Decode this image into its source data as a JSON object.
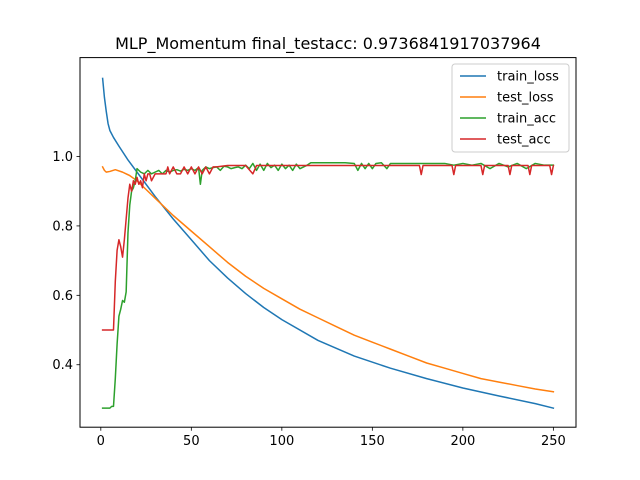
{
  "chart_data": {
    "type": "line",
    "title": "MLP_Momentum  final_testacc: 0.9736841917037964",
    "xlabel": "",
    "ylabel": "",
    "xlim": [
      -11.5,
      262.5
    ],
    "ylim": [
      0.22,
      1.285
    ],
    "xticks": [
      0,
      50,
      100,
      150,
      200,
      250
    ],
    "yticks": [
      0.4,
      0.6,
      0.8,
      1.0
    ],
    "xtick_labels": [
      "0",
      "50",
      "100",
      "150",
      "200",
      "250"
    ],
    "ytick_labels": [
      "0.4",
      "0.6",
      "0.8",
      "1.0"
    ],
    "grid": false,
    "legend_position": "top-right",
    "series": [
      {
        "name": "train_loss",
        "color": "#1f77b4",
        "points": [
          [
            1,
            1.225
          ],
          [
            2,
            1.17
          ],
          [
            3,
            1.13
          ],
          [
            4,
            1.095
          ],
          [
            5,
            1.075
          ],
          [
            7,
            1.055
          ],
          [
            10,
            1.03
          ],
          [
            15,
            0.99
          ],
          [
            20,
            0.955
          ],
          [
            30,
            0.885
          ],
          [
            40,
            0.82
          ],
          [
            50,
            0.76
          ],
          [
            60,
            0.7
          ],
          [
            70,
            0.65
          ],
          [
            80,
            0.605
          ],
          [
            90,
            0.565
          ],
          [
            100,
            0.53
          ],
          [
            120,
            0.47
          ],
          [
            140,
            0.425
          ],
          [
            160,
            0.39
          ],
          [
            180,
            0.36
          ],
          [
            200,
            0.333
          ],
          [
            220,
            0.31
          ],
          [
            240,
            0.288
          ],
          [
            250,
            0.275
          ]
        ]
      },
      {
        "name": "test_loss",
        "color": "#ff7f0e",
        "points": [
          [
            1,
            0.97
          ],
          [
            2,
            0.96
          ],
          [
            3,
            0.955
          ],
          [
            5,
            0.957
          ],
          [
            8,
            0.962
          ],
          [
            12,
            0.955
          ],
          [
            16,
            0.945
          ],
          [
            20,
            0.93
          ],
          [
            25,
            0.905
          ],
          [
            30,
            0.88
          ],
          [
            40,
            0.83
          ],
          [
            50,
            0.785
          ],
          [
            60,
            0.74
          ],
          [
            70,
            0.695
          ],
          [
            80,
            0.655
          ],
          [
            90,
            0.62
          ],
          [
            100,
            0.59
          ],
          [
            110,
            0.56
          ],
          [
            120,
            0.535
          ],
          [
            130,
            0.51
          ],
          [
            140,
            0.485
          ],
          [
            150,
            0.465
          ],
          [
            160,
            0.445
          ],
          [
            170,
            0.425
          ],
          [
            180,
            0.405
          ],
          [
            190,
            0.39
          ],
          [
            200,
            0.375
          ],
          [
            210,
            0.36
          ],
          [
            220,
            0.35
          ],
          [
            230,
            0.34
          ],
          [
            240,
            0.33
          ],
          [
            250,
            0.322
          ]
        ]
      },
      {
        "name": "train_acc",
        "color": "#2ca02c",
        "points": [
          [
            1,
            0.275
          ],
          [
            3,
            0.275
          ],
          [
            5,
            0.275
          ],
          [
            6,
            0.28
          ],
          [
            7,
            0.28
          ],
          [
            8,
            0.36
          ],
          [
            9,
            0.46
          ],
          [
            10,
            0.54
          ],
          [
            11,
            0.56
          ],
          [
            12,
            0.585
          ],
          [
            13,
            0.58
          ],
          [
            14,
            0.61
          ],
          [
            15,
            0.78
          ],
          [
            16,
            0.86
          ],
          [
            17,
            0.9
          ],
          [
            18,
            0.91
          ],
          [
            19,
            0.93
          ],
          [
            20,
            0.965
          ],
          [
            21,
            0.96
          ],
          [
            22,
            0.955
          ],
          [
            24,
            0.95
          ],
          [
            26,
            0.96
          ],
          [
            28,
            0.95
          ],
          [
            30,
            0.955
          ],
          [
            32,
            0.96
          ],
          [
            34,
            0.95
          ],
          [
            36,
            0.96
          ],
          [
            38,
            0.955
          ],
          [
            40,
            0.96
          ],
          [
            42,
            0.962
          ],
          [
            44,
            0.958
          ],
          [
            46,
            0.963
          ],
          [
            48,
            0.96
          ],
          [
            50,
            0.965
          ],
          [
            52,
            0.96
          ],
          [
            54,
            0.968
          ],
          [
            55,
            0.92
          ],
          [
            56,
            0.96
          ],
          [
            58,
            0.97
          ],
          [
            60,
            0.965
          ],
          [
            62,
            0.968
          ],
          [
            64,
            0.97
          ],
          [
            66,
            0.96
          ],
          [
            68,
            0.972
          ],
          [
            70,
            0.97
          ],
          [
            72,
            0.965
          ],
          [
            74,
            0.968
          ],
          [
            76,
            0.97
          ],
          [
            78,
            0.965
          ],
          [
            80,
            0.975
          ],
          [
            82,
            0.965
          ],
          [
            84,
            0.98
          ],
          [
            86,
            0.96
          ],
          [
            88,
            0.978
          ],
          [
            90,
            0.96
          ],
          [
            92,
            0.98
          ],
          [
            94,
            0.968
          ],
          [
            96,
            0.975
          ],
          [
            98,
            0.96
          ],
          [
            100,
            0.978
          ],
          [
            102,
            0.965
          ],
          [
            104,
            0.975
          ],
          [
            106,
            0.96
          ],
          [
            108,
            0.978
          ],
          [
            110,
            0.965
          ],
          [
            112,
            0.97
          ],
          [
            114,
            0.975
          ],
          [
            116,
            0.982
          ],
          [
            120,
            0.982
          ],
          [
            125,
            0.982
          ],
          [
            130,
            0.982
          ],
          [
            135,
            0.982
          ],
          [
            140,
            0.98
          ],
          [
            142,
            0.96
          ],
          [
            144,
            0.98
          ],
          [
            146,
            0.965
          ],
          [
            148,
            0.98
          ],
          [
            150,
            0.965
          ],
          [
            152,
            0.98
          ],
          [
            155,
            0.982
          ],
          [
            158,
            0.965
          ],
          [
            160,
            0.98
          ],
          [
            165,
            0.98
          ],
          [
            170,
            0.98
          ],
          [
            175,
            0.98
          ],
          [
            180,
            0.98
          ],
          [
            185,
            0.98
          ],
          [
            190,
            0.98
          ],
          [
            195,
            0.975
          ],
          [
            200,
            0.98
          ],
          [
            205,
            0.975
          ],
          [
            210,
            0.98
          ],
          [
            215,
            0.965
          ],
          [
            220,
            0.98
          ],
          [
            225,
            0.97
          ],
          [
            230,
            0.98
          ],
          [
            235,
            0.965
          ],
          [
            240,
            0.98
          ],
          [
            245,
            0.975
          ],
          [
            250,
            0.975
          ]
        ]
      },
      {
        "name": "test_acc",
        "color": "#d62728",
        "points": [
          [
            1,
            0.5
          ],
          [
            3,
            0.5
          ],
          [
            5,
            0.5
          ],
          [
            6,
            0.5
          ],
          [
            7,
            0.5
          ],
          [
            8,
            0.64
          ],
          [
            9,
            0.73
          ],
          [
            10,
            0.76
          ],
          [
            11,
            0.74
          ],
          [
            12,
            0.71
          ],
          [
            13,
            0.76
          ],
          [
            14,
            0.82
          ],
          [
            15,
            0.88
          ],
          [
            16,
            0.92
          ],
          [
            17,
            0.9
          ],
          [
            18,
            0.93
          ],
          [
            19,
            0.92
          ],
          [
            20,
            0.94
          ],
          [
            21,
            0.92
          ],
          [
            22,
            0.93
          ],
          [
            23,
            0.91
          ],
          [
            24,
            0.95
          ],
          [
            25,
            0.93
          ],
          [
            26,
            0.95
          ],
          [
            27,
            0.95
          ],
          [
            28,
            0.93
          ],
          [
            30,
            0.95
          ],
          [
            32,
            0.95
          ],
          [
            34,
            0.95
          ],
          [
            36,
            0.95
          ],
          [
            37,
            0.97
          ],
          [
            38,
            0.95
          ],
          [
            40,
            0.97
          ],
          [
            42,
            0.95
          ],
          [
            44,
            0.95
          ],
          [
            46,
            0.97
          ],
          [
            48,
            0.95
          ],
          [
            50,
            0.97
          ],
          [
            52,
            0.95
          ],
          [
            54,
            0.97
          ],
          [
            56,
            0.95
          ],
          [
            58,
            0.97
          ],
          [
            60,
            0.95
          ],
          [
            62,
            0.97
          ],
          [
            64,
            0.97
          ],
          [
            70,
            0.974
          ],
          [
            80,
            0.974
          ],
          [
            84,
            0.95
          ],
          [
            86,
            0.974
          ],
          [
            90,
            0.974
          ],
          [
            95,
            0.974
          ],
          [
            100,
            0.974
          ],
          [
            110,
            0.974
          ],
          [
            120,
            0.974
          ],
          [
            130,
            0.974
          ],
          [
            140,
            0.974
          ],
          [
            150,
            0.974
          ],
          [
            160,
            0.974
          ],
          [
            170,
            0.974
          ],
          [
            176,
            0.974
          ],
          [
            177,
            0.948
          ],
          [
            178,
            0.974
          ],
          [
            190,
            0.974
          ],
          [
            194,
            0.974
          ],
          [
            195,
            0.948
          ],
          [
            196,
            0.974
          ],
          [
            210,
            0.974
          ],
          [
            211,
            0.948
          ],
          [
            212,
            0.974
          ],
          [
            225,
            0.974
          ],
          [
            226,
            0.948
          ],
          [
            227,
            0.974
          ],
          [
            236,
            0.974
          ],
          [
            237,
            0.948
          ],
          [
            238,
            0.974
          ],
          [
            245,
            0.974
          ],
          [
            248,
            0.974
          ],
          [
            249,
            0.948
          ],
          [
            250,
            0.974
          ]
        ]
      }
    ]
  }
}
